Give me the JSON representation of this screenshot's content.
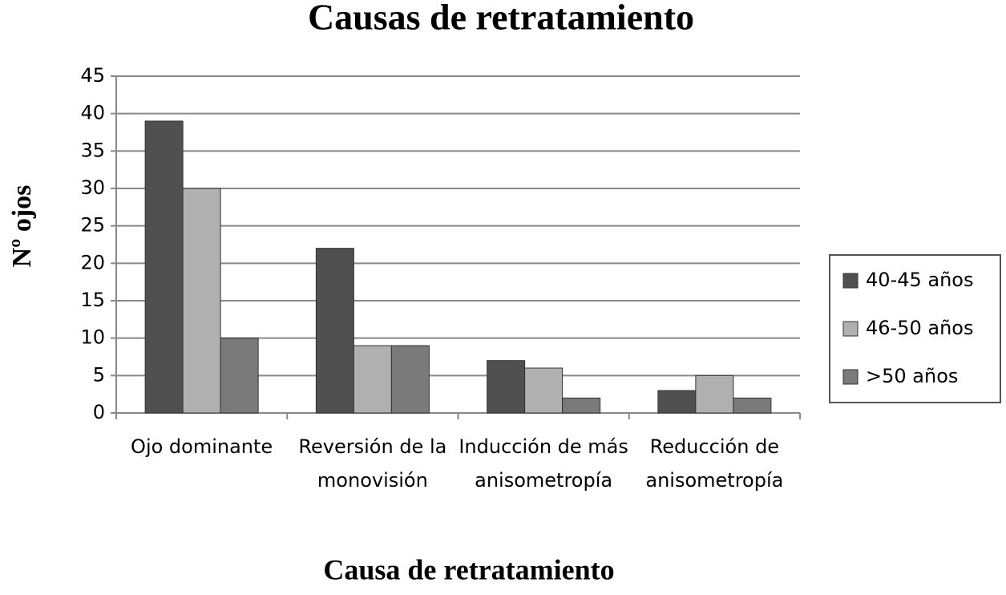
{
  "chart_data": {
    "type": "bar",
    "title": "Causas de retratamiento",
    "x_label": "Causa de retratamiento",
    "y_label": "Nº ojos",
    "categories": [
      "Ojo dominante",
      "Reversión de la monovisión",
      "Inducción de más anisometropía",
      "Reducción de anisometropía"
    ],
    "series": [
      {
        "name": "40-45 años",
        "color": "#505050",
        "values": [
          39,
          22,
          7,
          3
        ]
      },
      {
        "name": "46-50 años",
        "color": "#b0b0b0",
        "values": [
          30,
          9,
          6,
          5
        ]
      },
      {
        "name": ">50 años",
        "color": "#7a7a7a",
        "values": [
          10,
          9,
          2,
          2
        ]
      }
    ],
    "ylim": [
      0,
      45
    ],
    "yticks": [
      0,
      5,
      10,
      15,
      20,
      25,
      30,
      35,
      40,
      45
    ],
    "grid": true,
    "legend": "right"
  }
}
